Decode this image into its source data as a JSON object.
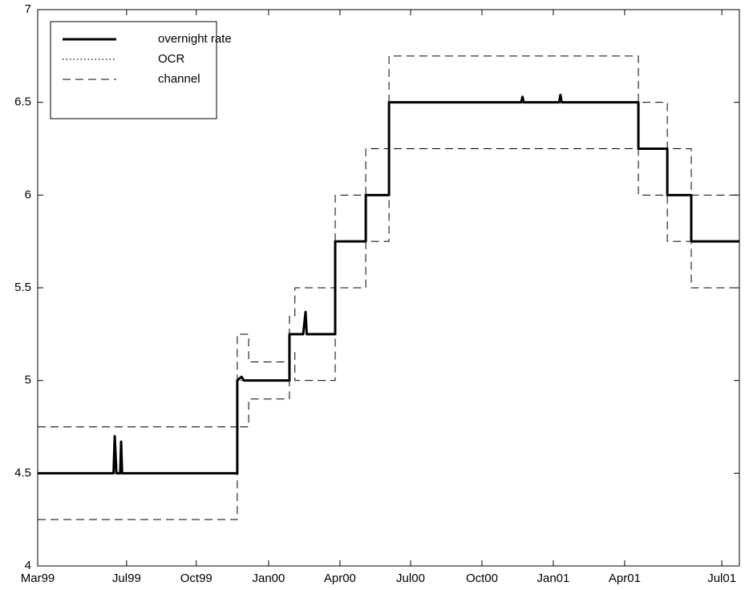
{
  "chart_data": {
    "type": "line",
    "xlim": [
      0,
      29.6
    ],
    "xticks": [
      {
        "value": 0,
        "label": "Mar99"
      },
      {
        "value": 3.75,
        "label": "Jul99"
      },
      {
        "value": 6.69,
        "label": "Oct99"
      },
      {
        "value": 9.74,
        "label": "Jan00"
      },
      {
        "value": 12.75,
        "label": "Apr00"
      },
      {
        "value": 15.73,
        "label": "Jul00"
      },
      {
        "value": 18.74,
        "label": "Oct00"
      },
      {
        "value": 21.75,
        "label": "Jan01"
      },
      {
        "value": 24.76,
        "label": "Apr01"
      },
      {
        "value": 28.86,
        "label": "Jul01"
      }
    ],
    "ylim": [
      4,
      7
    ],
    "yticks": [
      4,
      4.5,
      5,
      5.5,
      6,
      6.5,
      7
    ],
    "legend": "upper-left",
    "series": [
      {
        "name": "overnight rate",
        "color": "#000000",
        "style": "solid",
        "x": [
          0,
          3.2,
          3.25,
          3.32,
          3.48,
          3.52,
          3.56,
          8.42,
          8.42,
          8.6,
          8.7,
          10.62,
          10.62,
          11.2,
          11.3,
          11.35,
          12.55,
          12.55,
          13.84,
          13.84,
          14.82,
          14.82,
          20.4,
          20.45,
          20.5,
          22.0,
          22.05,
          22.1,
          25.34,
          25.34,
          26.56,
          26.56,
          27.57,
          27.57,
          29.6
        ],
        "values": [
          4.5,
          4.5,
          4.7,
          4.5,
          4.5,
          4.67,
          4.5,
          4.5,
          5.0,
          5.02,
          5.0,
          5.0,
          5.25,
          5.25,
          5.37,
          5.25,
          5.25,
          5.75,
          5.75,
          6.0,
          6.0,
          6.5,
          6.5,
          6.53,
          6.5,
          6.5,
          6.54,
          6.5,
          6.5,
          6.25,
          6.25,
          6.0,
          6.0,
          5.75,
          5.75
        ]
      },
      {
        "name": "OCR",
        "color": "#000000",
        "style": "dotted",
        "x": [
          0,
          8.42,
          8.42,
          10.62,
          10.62,
          12.55,
          12.55,
          13.84,
          13.84,
          14.82,
          14.82,
          25.34,
          25.34,
          26.56,
          26.56,
          27.57,
          27.57,
          29.6
        ],
        "values": [
          4.5,
          4.5,
          5.0,
          5.0,
          5.25,
          5.25,
          5.75,
          5.75,
          6.0,
          6.0,
          6.5,
          6.5,
          6.25,
          6.25,
          6.0,
          6.0,
          5.75,
          5.75
        ]
      },
      {
        "name": "channel",
        "color": "#000000",
        "style": "dashed",
        "x": [
          0,
          8.42,
          8.42,
          8.9,
          8.9,
          10.62,
          10.62,
          10.85,
          10.85,
          12.55,
          12.55,
          13.84,
          13.84,
          14.82,
          14.82,
          25.34,
          25.34,
          26.56,
          26.56,
          27.57,
          27.57,
          29.6,
          null,
          0,
          8.42,
          8.42,
          8.9,
          8.9,
          10.62,
          10.62,
          10.85,
          10.85,
          12.55,
          12.55,
          13.84,
          13.84,
          14.82,
          14.82,
          25.34,
          25.34,
          26.56,
          26.56,
          27.57,
          27.57,
          29.6
        ],
        "values": [
          4.75,
          4.75,
          5.25,
          5.25,
          5.1,
          5.1,
          5.35,
          5.35,
          5.5,
          5.5,
          6.0,
          6.0,
          6.25,
          6.25,
          6.75,
          6.75,
          6.5,
          6.5,
          6.25,
          6.25,
          6.0,
          6.0,
          null,
          4.25,
          4.25,
          4.75,
          4.75,
          4.9,
          4.9,
          5.15,
          5.15,
          5.0,
          5.0,
          5.5,
          5.5,
          5.75,
          5.75,
          6.25,
          6.25,
          6.0,
          6.0,
          5.75,
          5.75,
          5.5,
          5.5
        ]
      }
    ]
  }
}
